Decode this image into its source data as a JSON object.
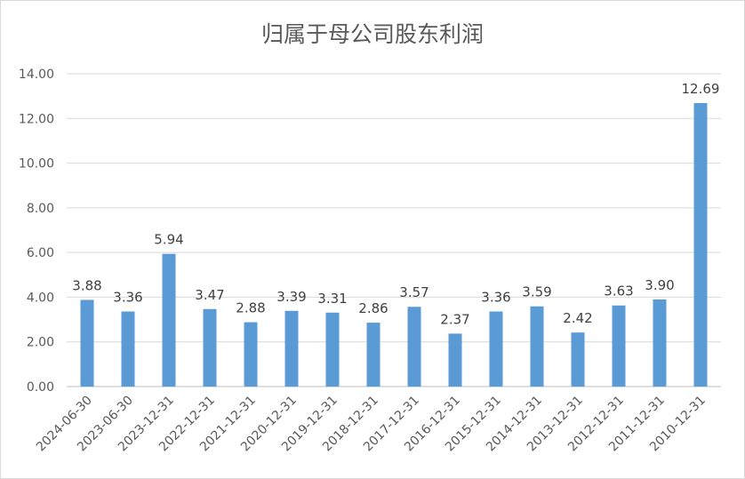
{
  "chart_data": {
    "type": "bar",
    "title": "归属于母公司股东利润",
    "categories": [
      "2024-06-30",
      "2023-06-30",
      "2023-12-31",
      "2022-12-31",
      "2021-12-31",
      "2020-12-31",
      "2019-12-31",
      "2018-12-31",
      "2017-12-31",
      "2016-12-31",
      "2015-12-31",
      "2014-12-31",
      "2013-12-31",
      "2012-12-31",
      "2011-12-31",
      "2010-12-31"
    ],
    "values": [
      3.88,
      3.36,
      5.94,
      3.47,
      2.88,
      3.39,
      3.31,
      2.86,
      3.57,
      2.37,
      3.36,
      3.59,
      2.42,
      3.63,
      3.9,
      12.69
    ],
    "value_labels": [
      "3.88",
      "3.36",
      "5.94",
      "3.47",
      "2.88",
      "3.39",
      "3.31",
      "2.86",
      "3.57",
      "2.37",
      "3.36",
      "3.59",
      "2.42",
      "3.63",
      "3.90",
      "12.69"
    ],
    "yticks": [
      "0.00",
      "2.00",
      "4.00",
      "6.00",
      "8.00",
      "10.00",
      "12.00",
      "14.00"
    ],
    "ylim": [
      0,
      14
    ],
    "xlabel": "",
    "ylabel": "",
    "grid": true,
    "legend": "none",
    "bar_color": "#5b9bd5",
    "grid_color": "#d9d9d9"
  }
}
